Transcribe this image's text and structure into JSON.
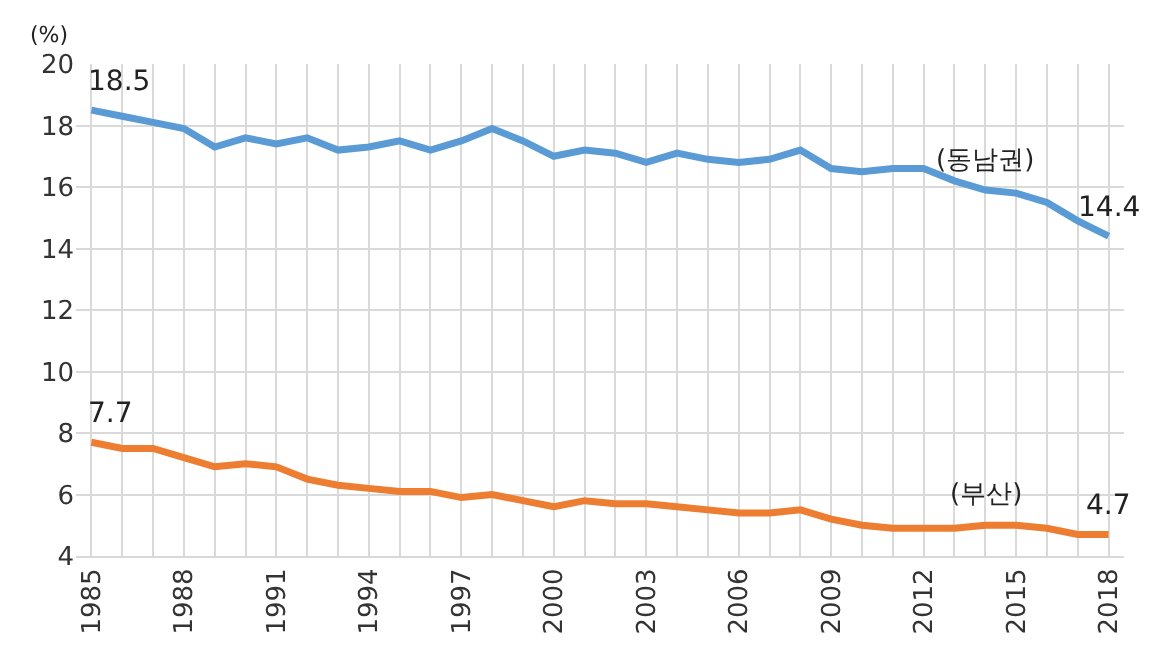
{
  "chart_data": {
    "type": "line",
    "ylabel": "(%)",
    "x": [
      1985,
      1986,
      1987,
      1988,
      1989,
      1990,
      1991,
      1992,
      1993,
      1994,
      1995,
      1996,
      1997,
      1998,
      1999,
      2000,
      2001,
      2002,
      2003,
      2004,
      2005,
      2006,
      2007,
      2008,
      2009,
      2010,
      2011,
      2012,
      2013,
      2014,
      2015,
      2016,
      2017,
      2018
    ],
    "series": [
      {
        "name": "(동남권)",
        "color": "#5b9bd5",
        "values": [
          18.5,
          18.3,
          18.1,
          17.9,
          17.3,
          17.6,
          17.4,
          17.6,
          17.2,
          17.3,
          17.5,
          17.2,
          17.5,
          17.9,
          17.5,
          17.0,
          17.2,
          17.1,
          16.8,
          17.1,
          16.9,
          16.8,
          16.9,
          17.2,
          16.6,
          16.5,
          16.6,
          16.6,
          16.2,
          15.9,
          15.8,
          15.5,
          14.9,
          14.4
        ],
        "value_labels": [
          "18.5",
          null,
          null,
          null,
          null,
          null,
          null,
          null,
          null,
          null,
          null,
          null,
          null,
          null,
          null,
          null,
          null,
          null,
          null,
          null,
          null,
          null,
          null,
          null,
          null,
          null,
          null,
          null,
          null,
          null,
          null,
          null,
          null,
          "14.4"
        ]
      },
      {
        "name": "(부산)",
        "color": "#ed7d31",
        "values": [
          7.7,
          7.5,
          7.5,
          7.2,
          6.9,
          7.0,
          6.9,
          6.5,
          6.3,
          6.2,
          6.1,
          6.1,
          5.9,
          6.0,
          5.8,
          5.6,
          5.8,
          5.7,
          5.7,
          5.6,
          5.5,
          5.4,
          5.4,
          5.5,
          5.2,
          5.0,
          4.9,
          4.9,
          4.9,
          5.0,
          5.0,
          4.9,
          4.7,
          4.7
        ],
        "value_labels": [
          "7.7",
          null,
          null,
          null,
          null,
          null,
          null,
          null,
          null,
          null,
          null,
          null,
          null,
          null,
          null,
          null,
          null,
          null,
          null,
          null,
          null,
          null,
          null,
          null,
          null,
          null,
          null,
          null,
          null,
          null,
          null,
          null,
          null,
          "4.7"
        ]
      }
    ],
    "xlim": [
      1984.5,
      2018.5
    ],
    "xticks": [
      1985,
      {
        "value": 1986,
        "label": null
      },
      {
        "value": 1987,
        "label": null
      },
      1988,
      {
        "value": 1989,
        "label": null
      },
      {
        "value": 1990,
        "label": null
      },
      1991,
      {
        "value": 1992,
        "label": null
      },
      {
        "value": 1993,
        "label": null
      },
      1994,
      {
        "value": 1995,
        "label": null
      },
      {
        "value": 1996,
        "label": null
      },
      1997,
      {
        "value": 1998,
        "label": null
      },
      {
        "value": 1999,
        "label": null
      },
      2000,
      {
        "value": 2001,
        "label": null
      },
      {
        "value": 2002,
        "label": null
      },
      2003,
      {
        "value": 2004,
        "label": null
      },
      {
        "value": 2005,
        "label": null
      },
      2006,
      {
        "value": 2007,
        "label": null
      },
      {
        "value": 2008,
        "label": null
      },
      2009,
      {
        "value": 2010,
        "label": null
      },
      {
        "value": 2011,
        "label": null
      },
      2012,
      {
        "value": 2013,
        "label": null
      },
      {
        "value": 2014,
        "label": null
      },
      2015,
      {
        "value": 2016,
        "label": null
      },
      {
        "value": 2017,
        "label": null
      },
      2018
    ],
    "ylim": [
      4,
      20
    ],
    "yticks": [
      4,
      6,
      8,
      10,
      12,
      14,
      16,
      18,
      20
    ],
    "grid": true,
    "legend": false,
    "marker": "none",
    "line_style": "solid"
  }
}
